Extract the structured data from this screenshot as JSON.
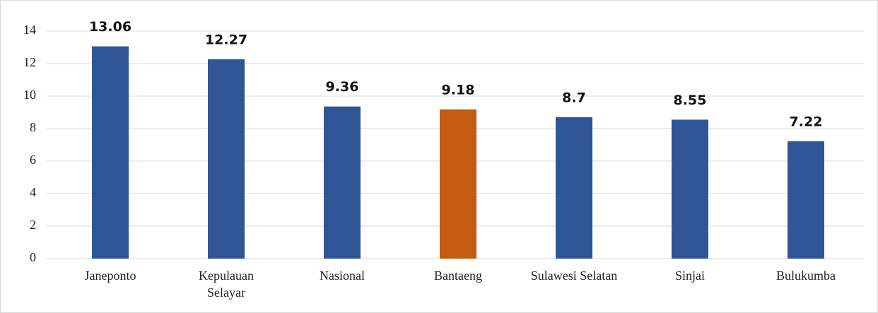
{
  "chart_data": {
    "type": "bar",
    "categories": [
      "Janeponto",
      "Kepulauan Selayar",
      "Nasional",
      "Bantaeng",
      "Sulawesi Selatan",
      "Sinjai",
      "Bulukumba"
    ],
    "values": [
      13.06,
      12.27,
      9.36,
      9.18,
      8.7,
      8.55,
      7.22
    ],
    "colors": [
      "#2f5597",
      "#2f5597",
      "#2f5597",
      "#c55a11",
      "#2f5597",
      "#2f5597",
      "#2f5597"
    ],
    "ylim": [
      0,
      14
    ],
    "yticks": [
      0,
      2,
      4,
      6,
      8,
      10,
      12,
      14
    ],
    "grid": true
  }
}
